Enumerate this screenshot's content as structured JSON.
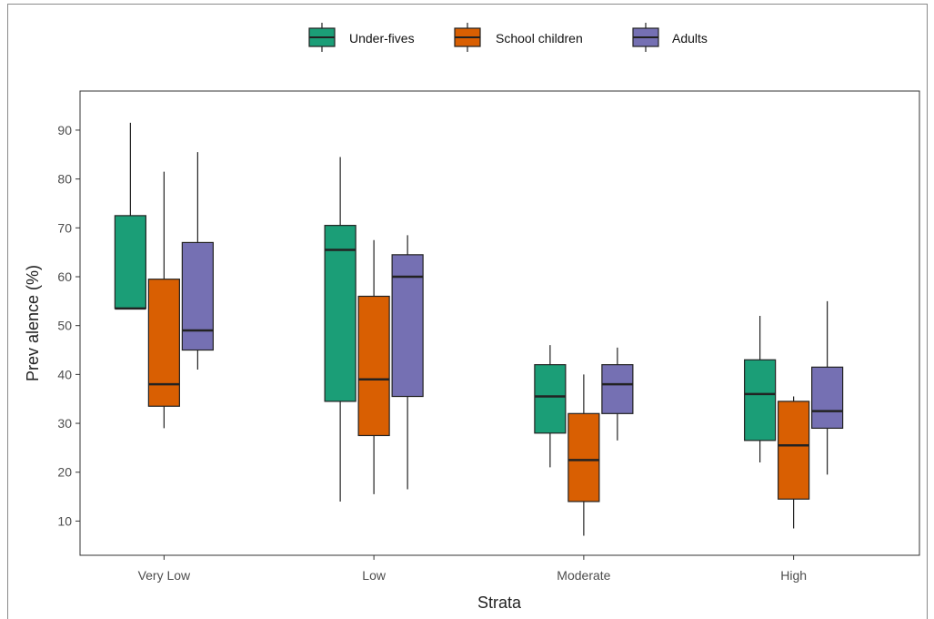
{
  "chart_data": {
    "type": "boxplot",
    "xlabel": "Strata",
    "ylabel": "Prev alence (%)",
    "ylim": [
      3,
      98
    ],
    "yticks": [
      10,
      20,
      30,
      40,
      50,
      60,
      70,
      80,
      90
    ],
    "categories": [
      "Very Low",
      "Low",
      "Moderate",
      "High"
    ],
    "legend_position": "top",
    "grid": false,
    "series": [
      {
        "name": "Under-fives",
        "color": "#1b9e77",
        "boxes": [
          {
            "min": 53.5,
            "q1": 53.5,
            "median": 53.5,
            "q3": 72.5,
            "max": 91.5
          },
          {
            "min": 14,
            "q1": 34.5,
            "median": 65.5,
            "q3": 70.5,
            "max": 84.5
          },
          {
            "min": 21,
            "q1": 28,
            "median": 35.5,
            "q3": 42,
            "max": 46
          },
          {
            "min": 22,
            "q1": 26.5,
            "median": 36,
            "q3": 43,
            "max": 52
          }
        ]
      },
      {
        "name": "School children",
        "color": "#d95f02",
        "boxes": [
          {
            "min": 29,
            "q1": 33.5,
            "median": 38,
            "q3": 59.5,
            "max": 81.5
          },
          {
            "min": 15.5,
            "q1": 27.5,
            "median": 39,
            "q3": 56,
            "max": 67.5
          },
          {
            "min": 7,
            "q1": 14,
            "median": 22.5,
            "q3": 32,
            "max": 40
          },
          {
            "min": 8.5,
            "q1": 14.5,
            "median": 25.5,
            "q3": 34.5,
            "max": 35.5
          }
        ]
      },
      {
        "name": "Adults",
        "color": "#7570b3",
        "boxes": [
          {
            "min": 41,
            "q1": 45,
            "median": 49,
            "q3": 67,
            "max": 85.5
          },
          {
            "min": 16.5,
            "q1": 35.5,
            "median": 60,
            "q3": 64.5,
            "max": 68.5
          },
          {
            "min": 26.5,
            "q1": 32,
            "median": 38,
            "q3": 42,
            "max": 45.5
          },
          {
            "min": 19.5,
            "q1": 29,
            "median": 32.5,
            "q3": 41.5,
            "max": 55
          }
        ]
      }
    ]
  }
}
